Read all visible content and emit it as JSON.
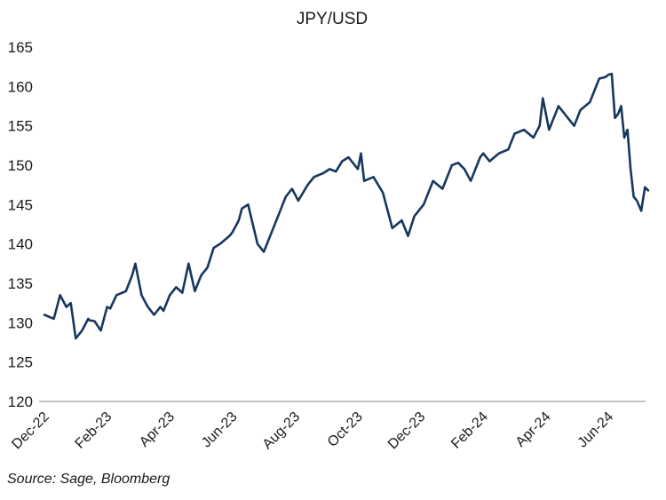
{
  "chart_data": {
    "type": "line",
    "title": "JPY/USD",
    "xlabel": "",
    "ylabel": "",
    "ylim": [
      120,
      165
    ],
    "yticks": [
      120,
      125,
      130,
      135,
      140,
      145,
      150,
      155,
      160,
      165
    ],
    "xtick_labels": [
      "Dec-22",
      "Feb-23",
      "Apr-23",
      "Jun-23",
      "Aug-23",
      "Oct-23",
      "Dec-23",
      "Feb-24",
      "Apr-24",
      "Jun-24"
    ],
    "grid": false,
    "line_color": "#17375e",
    "series": [
      {
        "name": "JPY/USD",
        "x": [
          0.0,
          0.15,
          0.25,
          0.35,
          0.42,
          0.5,
          0.6,
          0.7,
          0.72,
          0.8,
          0.9,
          1.0,
          1.05,
          1.15,
          1.3,
          1.4,
          1.45,
          1.55,
          1.65,
          1.75,
          1.85,
          1.9,
          2.0,
          2.1,
          2.2,
          2.3,
          2.4,
          2.5,
          2.6,
          2.7,
          2.8,
          2.95,
          3.0,
          3.1,
          3.15,
          3.25,
          3.4,
          3.5,
          3.6,
          3.75,
          3.85,
          3.95,
          4.05,
          4.2,
          4.3,
          4.45,
          4.55,
          4.65,
          4.75,
          4.85,
          5.0,
          5.05,
          5.1,
          5.25,
          5.4,
          5.55,
          5.7,
          5.8,
          5.9,
          6.05,
          6.2,
          6.35,
          6.5,
          6.6,
          6.7,
          6.8,
          6.95,
          7.0,
          7.1,
          7.25,
          7.4,
          7.5,
          7.65,
          7.8,
          7.9,
          7.95,
          8.05,
          8.2,
          8.3,
          8.45,
          8.55,
          8.7,
          8.85,
          8.95,
          9.0,
          9.05,
          9.1,
          9.15,
          9.2,
          9.25,
          9.3,
          9.35,
          9.4,
          9.45,
          9.52,
          9.58,
          9.63
        ],
        "values": [
          131,
          130.5,
          133.5,
          132,
          132.5,
          128,
          129,
          130.5,
          130.3,
          130.2,
          129,
          132,
          131.8,
          133.5,
          134,
          136,
          137.5,
          133.5,
          132,
          131,
          132,
          131.5,
          133.5,
          134.5,
          133.8,
          137.5,
          134,
          136,
          137,
          139.5,
          140,
          141,
          141.5,
          143,
          144.5,
          145,
          140,
          139,
          141,
          144,
          146,
          147,
          145.5,
          147.5,
          148.5,
          149,
          149.5,
          149.2,
          150.5,
          151,
          149.5,
          151.5,
          148,
          148.5,
          146.5,
          142,
          143,
          141,
          143.5,
          145,
          148,
          147,
          150,
          150.3,
          149.5,
          148,
          151,
          151.5,
          150.5,
          151.5,
          152,
          154,
          154.5,
          153.5,
          155,
          158.5,
          154.5,
          157.5,
          156.5,
          155,
          157,
          158,
          161,
          161.2,
          161.5,
          161.6,
          156,
          156.5,
          157.5,
          153.5,
          154.5,
          149.5,
          146,
          145.5,
          144.2,
          147.2,
          146.8
        ]
      }
    ]
  },
  "source_note": "Source: Sage, Bloomberg"
}
